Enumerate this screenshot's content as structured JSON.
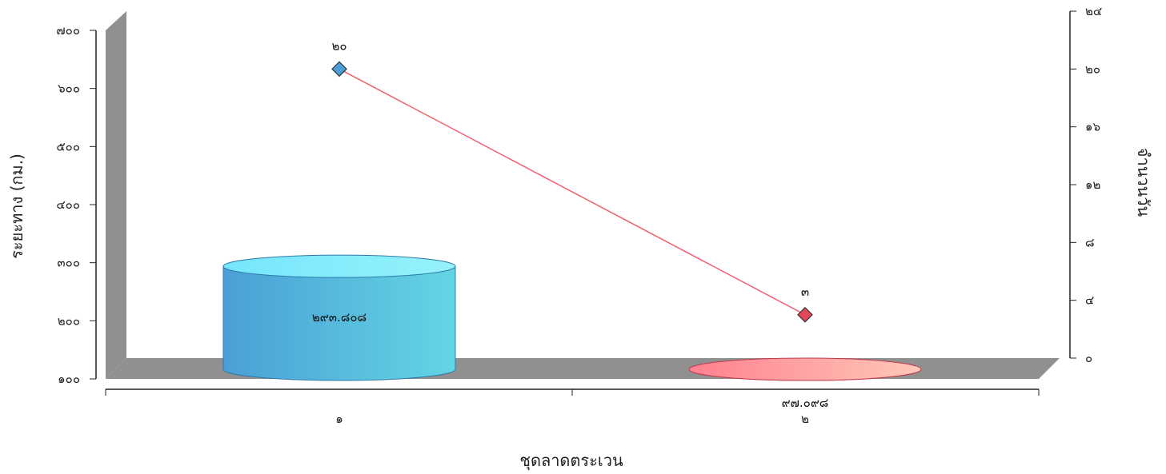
{
  "chart_data": {
    "type": "bar",
    "style": "3d-cylinder-with-line",
    "categories": [
      "๑",
      "๒"
    ],
    "xlabel": "ชุดลาดตระเวน",
    "ylabel": "ระยะทาง (กม.)",
    "y2label": "จำนวนวัน",
    "ylim": [
      100,
      700
    ],
    "y2lim": [
      0,
      24
    ],
    "yticks": [
      "๑๐๐",
      "๒๐๐",
      "๓๐๐",
      "๔๐๐",
      "๕๐๐",
      "๖๐๐",
      "๗๐๐"
    ],
    "y2ticks": [
      "๐",
      "๔",
      "๘",
      "๑๒",
      "๑๖",
      "๒๐",
      "๒๔"
    ],
    "grid": false,
    "series": [
      {
        "type": "bar",
        "axis": "left",
        "values": [
          293.808,
          97.098
        ],
        "labels": [
          "๒๙๓.๘๐๘",
          "๙๗.๐๙๘"
        ],
        "colors": [
          "#4fa8d8",
          "#f06878"
        ]
      },
      {
        "type": "line",
        "axis": "right",
        "values": [
          20,
          3
        ],
        "labels": [
          "๒๐",
          "๓"
        ],
        "line_color": "#f06070",
        "marker_colors": [
          "#4a9fd8",
          "#e04858"
        ]
      }
    ]
  }
}
